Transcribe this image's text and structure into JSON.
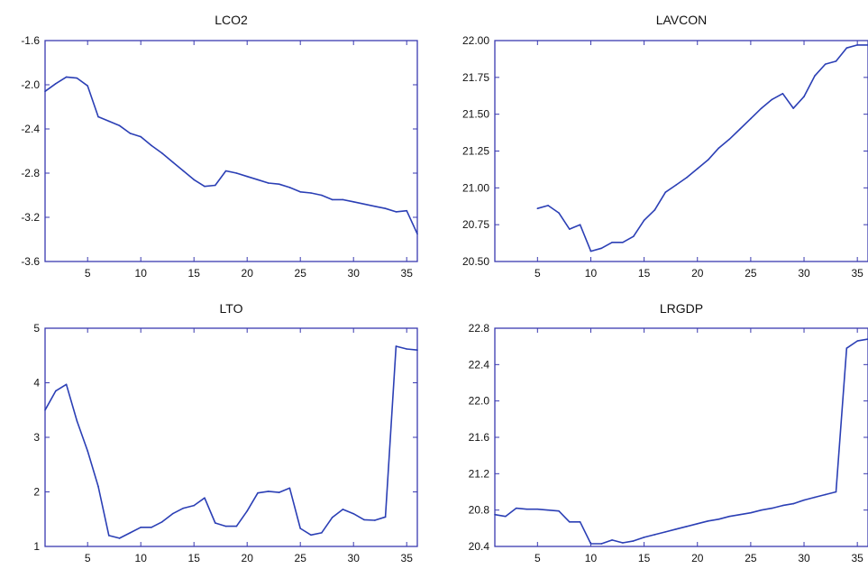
{
  "chart_data": [
    {
      "type": "line",
      "title": "LCO2",
      "xlim": [
        1,
        36
      ],
      "ylim": [
        -3.6,
        -1.6
      ],
      "xticks": [
        5,
        10,
        15,
        20,
        25,
        30,
        35
      ],
      "yticks": [
        -1.6,
        -2.0,
        -2.4,
        -2.8,
        -3.2,
        -3.6
      ],
      "ytick_labels": [
        "-1.6",
        "-2.0",
        "-2.4",
        "-2.8",
        "-3.2",
        "-3.6"
      ],
      "color": "#2b3fb5",
      "x": [
        1,
        2,
        3,
        4,
        5,
        6,
        7,
        8,
        9,
        10,
        11,
        12,
        13,
        14,
        15,
        16,
        17,
        18,
        19,
        20,
        21,
        22,
        23,
        24,
        25,
        26,
        27,
        28,
        29,
        30,
        31,
        32,
        33,
        34,
        35,
        36
      ],
      "values": [
        -2.06,
        -1.99,
        -1.93,
        -1.94,
        -2.01,
        -2.29,
        -2.33,
        -2.37,
        -2.44,
        -2.47,
        -2.55,
        -2.62,
        -2.7,
        -2.78,
        -2.86,
        -2.92,
        -2.91,
        -2.78,
        -2.8,
        -2.83,
        -2.86,
        -2.89,
        -2.9,
        -2.93,
        -2.97,
        -2.98,
        -3.0,
        -3.04,
        -3.04,
        -3.06,
        -3.08,
        -3.1,
        -3.12,
        -3.15,
        -3.14,
        -3.35
      ]
    },
    {
      "type": "line",
      "title": "LAVCON",
      "xlim": [
        1,
        36
      ],
      "ylim": [
        20.5,
        22.0
      ],
      "xticks": [
        5,
        10,
        15,
        20,
        25,
        30,
        35
      ],
      "yticks": [
        22.0,
        21.75,
        21.5,
        21.25,
        21.0,
        20.75,
        20.5
      ],
      "ytick_labels": [
        "22.00",
        "21.75",
        "21.50",
        "21.25",
        "21.00",
        "20.75",
        "20.50"
      ],
      "color": "#2b3fb5",
      "x": [
        5,
        6,
        7,
        8,
        9,
        10,
        11,
        12,
        13,
        14,
        15,
        16,
        17,
        18,
        19,
        20,
        21,
        22,
        23,
        24,
        25,
        26,
        27,
        28,
        29,
        30,
        31,
        32,
        33,
        34,
        35,
        36
      ],
      "values": [
        20.86,
        20.88,
        20.83,
        20.72,
        20.75,
        20.57,
        20.59,
        20.63,
        20.63,
        20.67,
        20.78,
        20.85,
        20.97,
        21.02,
        21.07,
        21.13,
        21.19,
        21.27,
        21.33,
        21.4,
        21.47,
        21.54,
        21.6,
        21.64,
        21.54,
        21.62,
        21.76,
        21.84,
        21.86,
        21.95,
        21.97,
        21.97
      ]
    },
    {
      "type": "line",
      "title": "LTO",
      "xlim": [
        1,
        36
      ],
      "ylim": [
        1,
        5
      ],
      "xticks": [
        5,
        10,
        15,
        20,
        25,
        30,
        35
      ],
      "yticks": [
        5,
        4,
        3,
        2,
        1
      ],
      "ytick_labels": [
        "5",
        "4",
        "3",
        "2",
        "1"
      ],
      "color": "#2b3fb5",
      "x": [
        1,
        2,
        3,
        4,
        5,
        6,
        7,
        8,
        9,
        10,
        11,
        12,
        13,
        14,
        15,
        16,
        17,
        18,
        19,
        20,
        21,
        22,
        23,
        24,
        25,
        26,
        27,
        28,
        29,
        30,
        31,
        32,
        33,
        34,
        35,
        36
      ],
      "values": [
        3.5,
        3.85,
        3.97,
        3.3,
        2.75,
        2.1,
        1.2,
        1.15,
        1.25,
        1.35,
        1.35,
        1.45,
        1.6,
        1.7,
        1.75,
        1.89,
        1.43,
        1.37,
        1.37,
        1.65,
        1.98,
        2.01,
        1.99,
        2.07,
        1.33,
        1.21,
        1.25,
        1.53,
        1.68,
        1.6,
        1.49,
        1.48,
        1.54,
        4.67,
        4.62,
        4.6
      ]
    },
    {
      "type": "line",
      "title": "LRGDP",
      "xlim": [
        1,
        36
      ],
      "ylim": [
        20.4,
        22.8
      ],
      "xticks": [
        5,
        10,
        15,
        20,
        25,
        30,
        35
      ],
      "yticks": [
        22.8,
        22.4,
        22.0,
        21.6,
        21.2,
        20.8,
        20.4
      ],
      "ytick_labels": [
        "22.8",
        "22.4",
        "22.0",
        "21.6",
        "21.2",
        "20.8",
        "20.4"
      ],
      "color": "#2b3fb5",
      "x": [
        1,
        2,
        3,
        4,
        5,
        6,
        7,
        8,
        9,
        10,
        11,
        12,
        13,
        14,
        15,
        16,
        17,
        18,
        19,
        20,
        21,
        22,
        23,
        24,
        25,
        26,
        27,
        28,
        29,
        30,
        31,
        32,
        33,
        34,
        35,
        36
      ],
      "values": [
        20.75,
        20.73,
        20.82,
        20.81,
        20.81,
        20.8,
        20.79,
        20.67,
        20.67,
        20.43,
        20.43,
        20.47,
        20.44,
        20.46,
        20.5,
        20.53,
        20.56,
        20.59,
        20.62,
        20.65,
        20.68,
        20.7,
        20.73,
        20.75,
        20.77,
        20.8,
        20.82,
        20.85,
        20.87,
        20.91,
        20.94,
        20.97,
        21.0,
        22.58,
        22.66,
        22.68
      ]
    }
  ]
}
